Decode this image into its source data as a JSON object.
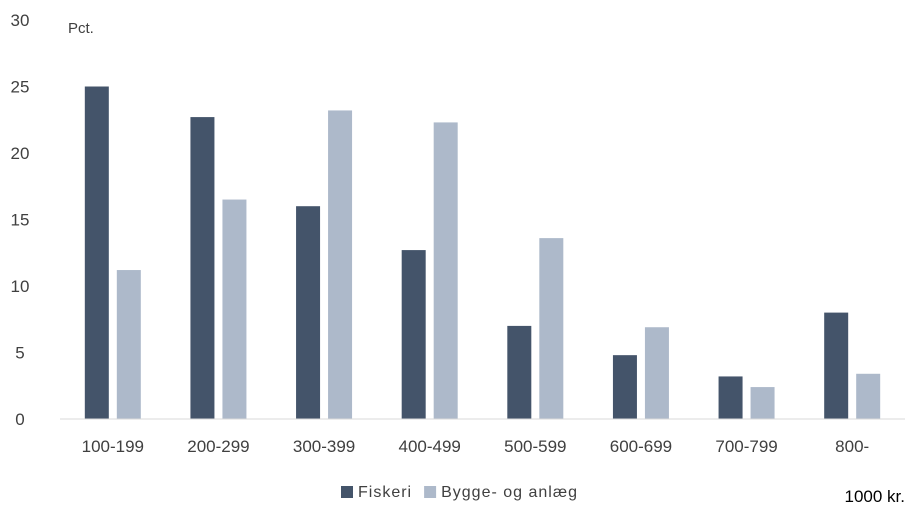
{
  "chart_data": {
    "type": "bar",
    "ylabel": "Pct.",
    "xlabel": "1000 kr.",
    "ylim": [
      0,
      30
    ],
    "yticks": [
      0,
      5,
      10,
      15,
      20,
      25,
      30
    ],
    "categories": [
      "100-199",
      "200-299",
      "300-399",
      "400-499",
      "500-599",
      "600-699",
      "700-799",
      "800-"
    ],
    "series": [
      {
        "name": "Fiskeri",
        "color": "#44546a",
        "values": [
          25.0,
          22.7,
          16.0,
          12.7,
          7.0,
          4.8,
          3.2,
          8.0
        ]
      },
      {
        "name": "Bygge- og anlæg",
        "color": "#adb9ca",
        "values": [
          11.2,
          16.5,
          23.2,
          22.3,
          13.6,
          6.9,
          2.4,
          3.4
        ]
      }
    ],
    "grid": false,
    "legend_position": "bottom"
  }
}
